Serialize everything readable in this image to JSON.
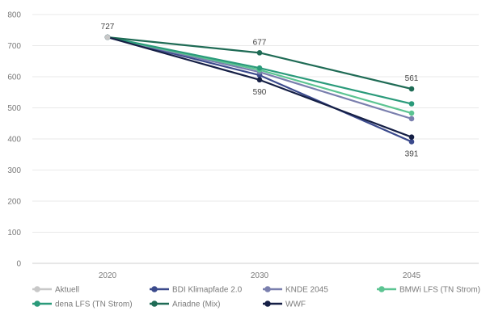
{
  "chart_data": {
    "type": "line",
    "x": [
      "2020",
      "2030",
      "2045"
    ],
    "ylim": [
      0,
      800
    ],
    "yticks": [
      "0",
      "100",
      "200",
      "300",
      "400",
      "500",
      "600",
      "700",
      "800"
    ],
    "grid": true,
    "legend_position": "bottom",
    "series": [
      {
        "name": "Aktuell",
        "color": "#c8c8c8",
        "values": [
          727,
          null,
          null
        ]
      },
      {
        "name": "BDI Klimapfade 2.0",
        "color": "#3b4a8c",
        "values": [
          727,
          605,
          391
        ]
      },
      {
        "name": "KNDE 2045",
        "color": "#7a7fae",
        "values": [
          727,
          615,
          465
        ]
      },
      {
        "name": "BMWi LFS (TN Strom)",
        "color": "#5cc492",
        "values": [
          727,
          622,
          483
        ]
      },
      {
        "name": "dena LFS (TN Strom)",
        "color": "#2a9a7a",
        "values": [
          727,
          628,
          513
        ]
      },
      {
        "name": "Ariadne (Mix)",
        "color": "#1f6b55",
        "values": [
          727,
          677,
          561
        ]
      },
      {
        "name": "WWF",
        "color": "#151f45",
        "values": [
          727,
          590,
          406
        ]
      }
    ],
    "data_labels": [
      {
        "text": "727",
        "series": "Aktuell",
        "x": "2020",
        "value": 727,
        "pos": "above"
      },
      {
        "text": "677",
        "series": "Ariadne (Mix)",
        "x": "2030",
        "value": 677,
        "pos": "above"
      },
      {
        "text": "590",
        "series": "WWF",
        "x": "2030",
        "value": 590,
        "pos": "below"
      },
      {
        "text": "561",
        "series": "Ariadne (Mix)",
        "x": "2045",
        "value": 561,
        "pos": "above"
      },
      {
        "text": "391",
        "series": "BDI Klimapfade 2.0",
        "x": "2045",
        "value": 391,
        "pos": "below"
      }
    ]
  }
}
